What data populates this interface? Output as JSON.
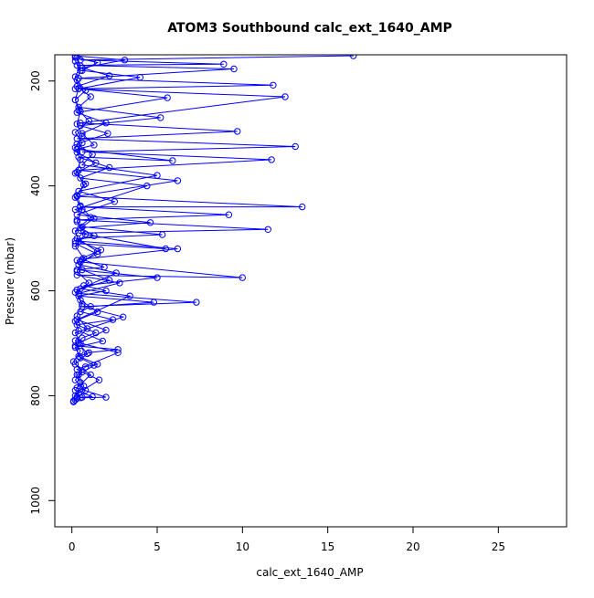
{
  "chart_data": {
    "type": "line",
    "title": "ATOM3 Southbound calc_ext_1640_AMP",
    "xlabel": "calc_ext_1640_AMP",
    "ylabel": "Pressure (mbar)",
    "xlim": [
      -1,
      29
    ],
    "ylim": [
      1050,
      150
    ],
    "y_reversed": true,
    "xticks": [
      0,
      5,
      10,
      15,
      20,
      25
    ],
    "yticks": [
      200,
      400,
      600,
      800,
      1000
    ],
    "xtick_labels": [
      "0",
      "5",
      "10",
      "15",
      "20",
      "25"
    ],
    "ytick_labels": [
      "200",
      "400",
      "600",
      "800",
      "1000"
    ],
    "grid": false,
    "marker": "open-circle",
    "series_color": "#0000ff",
    "series": [
      {
        "values": [
          [
            0.1,
            810
          ],
          [
            0.3,
            802
          ],
          [
            0.6,
            803
          ],
          [
            1.2,
            802
          ],
          [
            0.2,
            790
          ],
          [
            0.5,
            775
          ],
          [
            0.3,
            760
          ],
          [
            0.8,
            745
          ],
          [
            1.5,
            740
          ],
          [
            0.4,
            725
          ],
          [
            1.0,
            718
          ],
          [
            2.7,
            712
          ],
          [
            0.2,
            705
          ],
          [
            0.6,
            690
          ],
          [
            1.4,
            680
          ],
          [
            0.3,
            665
          ],
          [
            2.4,
            655
          ],
          [
            0.5,
            640
          ],
          [
            1.1,
            630
          ],
          [
            4.8,
            622
          ],
          [
            0.4,
            610
          ],
          [
            2.0,
            600
          ],
          [
            0.7,
            590
          ],
          [
            5.0,
            575
          ],
          [
            0.3,
            560
          ],
          [
            1.9,
            555
          ],
          [
            0.6,
            540
          ],
          [
            6.2,
            520
          ],
          [
            0.2,
            505
          ],
          [
            1.3,
            495
          ],
          [
            0.5,
            480
          ],
          [
            4.6,
            470
          ],
          [
            0.3,
            455
          ],
          [
            2.5,
            430
          ],
          [
            0.4,
            410
          ],
          [
            5.0,
            380
          ],
          [
            0.6,
            360
          ],
          [
            1.2,
            340
          ],
          [
            0.3,
            320
          ],
          [
            2.1,
            300
          ],
          [
            0.5,
            285
          ],
          [
            5.2,
            270
          ],
          [
            0.4,
            250
          ],
          [
            1.1,
            230
          ],
          [
            0.3,
            210
          ],
          [
            2.2,
            190
          ],
          [
            0.6,
            175
          ],
          [
            3.1,
            160
          ],
          [
            0.2,
            152
          ]
        ]
      },
      {
        "values": [
          [
            0.2,
            808
          ],
          [
            0.4,
            795
          ],
          [
            1.6,
            770
          ],
          [
            0.3,
            750
          ],
          [
            2.7,
            718
          ],
          [
            0.5,
            700
          ],
          [
            0.2,
            680
          ],
          [
            3.0,
            650
          ],
          [
            0.6,
            630
          ],
          [
            7.3,
            622
          ],
          [
            0.4,
            605
          ],
          [
            2.8,
            585
          ],
          [
            0.3,
            570
          ],
          [
            10.0,
            575
          ],
          [
            0.5,
            545
          ],
          [
            1.5,
            530
          ],
          [
            0.2,
            510
          ],
          [
            5.5,
            520
          ],
          [
            0.4,
            490
          ],
          [
            11.5,
            483
          ],
          [
            0.3,
            465
          ],
          [
            9.2,
            455
          ],
          [
            0.5,
            440
          ],
          [
            13.5,
            440
          ],
          [
            0.3,
            420
          ],
          [
            6.2,
            390
          ],
          [
            0.4,
            370
          ],
          [
            11.7,
            350
          ],
          [
            0.6,
            335
          ],
          [
            13.1,
            325
          ],
          [
            0.3,
            310
          ],
          [
            9.7,
            296
          ],
          [
            0.5,
            280
          ],
          [
            12.5,
            230
          ],
          [
            0.2,
            215
          ],
          [
            11.8,
            208
          ],
          [
            0.4,
            195
          ],
          [
            9.5,
            177
          ],
          [
            0.3,
            170
          ],
          [
            8.9,
            168
          ],
          [
            0.5,
            160
          ],
          [
            16.5,
            152
          ]
        ]
      },
      {
        "values": [
          [
            0.1,
            812
          ],
          [
            0.5,
            804
          ],
          [
            2.0,
            803
          ],
          [
            0.3,
            785
          ],
          [
            1.1,
            760
          ],
          [
            0.2,
            740
          ],
          [
            0.9,
            720
          ],
          [
            0.4,
            700
          ],
          [
            2.0,
            675
          ],
          [
            0.3,
            655
          ],
          [
            3.4,
            610
          ],
          [
            0.5,
            596
          ],
          [
            2.6,
            566
          ],
          [
            0.4,
            550
          ],
          [
            1.5,
            525
          ],
          [
            0.3,
            500
          ],
          [
            5.3,
            493
          ],
          [
            0.6,
            478
          ],
          [
            1.3,
            462
          ],
          [
            0.2,
            445
          ],
          [
            4.4,
            400
          ],
          [
            0.5,
            385
          ],
          [
            2.2,
            365
          ],
          [
            0.4,
            345
          ],
          [
            5.9,
            352
          ],
          [
            0.3,
            330
          ],
          [
            1.3,
            322
          ],
          [
            0.6,
            300
          ],
          [
            2.0,
            280
          ],
          [
            0.3,
            260
          ],
          [
            5.6,
            232
          ],
          [
            0.4,
            215
          ],
          [
            4.0,
            193
          ],
          [
            0.6,
            180
          ],
          [
            1.5,
            165
          ],
          [
            0.2,
            155
          ]
        ]
      },
      {
        "values": [
          [
            0.3,
            805
          ],
          [
            0.8,
            790
          ],
          [
            0.2,
            770
          ],
          [
            0.6,
            755
          ],
          [
            0.1,
            735
          ],
          [
            0.5,
            715
          ],
          [
            0.2,
            695
          ],
          [
            0.9,
            672
          ],
          [
            0.3,
            648
          ],
          [
            0.6,
            625
          ],
          [
            0.2,
            603
          ],
          [
            1.0,
            585
          ],
          [
            0.3,
            563
          ],
          [
            0.7,
            538
          ],
          [
            0.2,
            515
          ],
          [
            0.8,
            492
          ],
          [
            0.3,
            468
          ],
          [
            0.6,
            445
          ],
          [
            0.2,
            422
          ],
          [
            0.7,
            398
          ],
          [
            0.3,
            374
          ],
          [
            0.5,
            350
          ],
          [
            0.2,
            327
          ],
          [
            0.6,
            305
          ],
          [
            0.3,
            282
          ],
          [
            0.5,
            258
          ],
          [
            0.2,
            236
          ],
          [
            0.4,
            214
          ],
          [
            0.2,
            192
          ],
          [
            0.5,
            171
          ],
          [
            0.3,
            155
          ]
        ]
      },
      {
        "values": [
          [
            0.2,
            800
          ],
          [
            0.7,
            782
          ],
          [
            0.4,
            760
          ],
          [
            1.3,
            742
          ],
          [
            0.5,
            728
          ],
          [
            0.2,
            708
          ],
          [
            1.8,
            696
          ],
          [
            0.4,
            676
          ],
          [
            0.2,
            658
          ],
          [
            1.5,
            640
          ],
          [
            0.5,
            618
          ],
          [
            0.3,
            598
          ],
          [
            2.2,
            580
          ],
          [
            0.6,
            560
          ],
          [
            0.3,
            542
          ],
          [
            1.7,
            522
          ],
          [
            0.4,
            506
          ],
          [
            0.2,
            486
          ],
          [
            1.1,
            460
          ],
          [
            0.5,
            438
          ],
          [
            0.3,
            418
          ],
          [
            0.8,
            396
          ],
          [
            0.2,
            376
          ],
          [
            1.4,
            356
          ],
          [
            0.3,
            336
          ],
          [
            0.6,
            318
          ],
          [
            0.2,
            298
          ],
          [
            1.0,
            276
          ],
          [
            0.4,
            256
          ],
          [
            0.2,
            236
          ],
          [
            0.8,
            218
          ],
          [
            0.3,
            198
          ],
          [
            0.5,
            180
          ],
          [
            0.2,
            162
          ]
        ]
      }
    ]
  }
}
